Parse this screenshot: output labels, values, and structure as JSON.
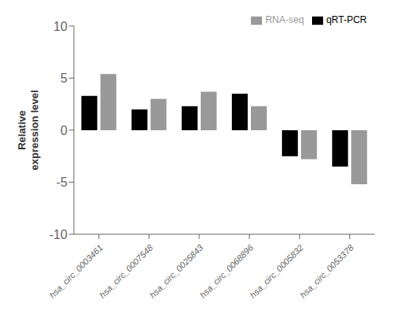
{
  "chart_data": {
    "type": "bar",
    "y_label": "Relative\nexpression level",
    "categories": [
      "hsa_circ_0003461",
      "hsa_circ_0007548",
      "hsa_circ_0025843",
      "hsa_circ_0068896",
      "hsa_circ_0005832",
      "hsa_circ_0053378"
    ],
    "series": [
      {
        "name": "qRT-PCR",
        "color": "#000000",
        "values": [
          3.3,
          2.0,
          2.3,
          3.5,
          -2.5,
          -3.5
        ]
      },
      {
        "name": "RNA-seq",
        "color": "#999999",
        "values": [
          5.4,
          3.0,
          3.7,
          2.3,
          -2.8,
          -5.2
        ]
      }
    ],
    "ylim": [
      -10,
      10
    ],
    "yticks": [
      -10,
      -5,
      0,
      5,
      10
    ],
    "grid": false,
    "legend": "upper right"
  }
}
